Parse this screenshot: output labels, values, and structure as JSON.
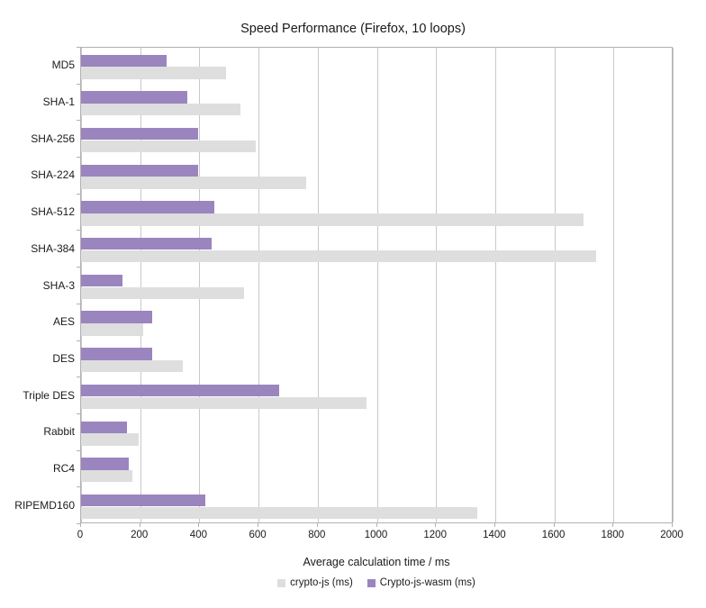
{
  "chart_data": {
    "type": "bar",
    "orientation": "horizontal",
    "title": "Speed Performance (Firefox, 10 loops)",
    "xlabel": "Average calculation time / ms",
    "ylabel": "",
    "xlim": [
      0,
      2000
    ],
    "x_tick_labels": [
      "0",
      "200",
      "400",
      "600",
      "800",
      "1000",
      "1200",
      "1400",
      "1600",
      "1800",
      "2000"
    ],
    "grid": true,
    "legend_position": "bottom",
    "categories": [
      "MD5",
      "SHA-1",
      "SHA-256",
      "SHA-224",
      "SHA-512",
      "SHA-384",
      "SHA-3",
      "AES",
      "DES",
      "Triple DES",
      "Rabbit",
      "RC4",
      "RIPEMD160"
    ],
    "series": [
      {
        "name": "crypto-js (ms)",
        "color": "#dedede",
        "values": [
          490,
          540,
          590,
          760,
          1700,
          1740,
          550,
          210,
          345,
          965,
          195,
          175,
          1340
        ]
      },
      {
        "name": "Crypto-js-wasm (ms)",
        "color": "#9a85be",
        "values": [
          290,
          360,
          395,
          395,
          450,
          440,
          140,
          240,
          240,
          670,
          155,
          160,
          420
        ]
      }
    ]
  },
  "colors": {
    "grid": "#c8c8c8",
    "axis": "#b2b2b2",
    "text": "#1a1a1a",
    "background": "#ffffff"
  }
}
